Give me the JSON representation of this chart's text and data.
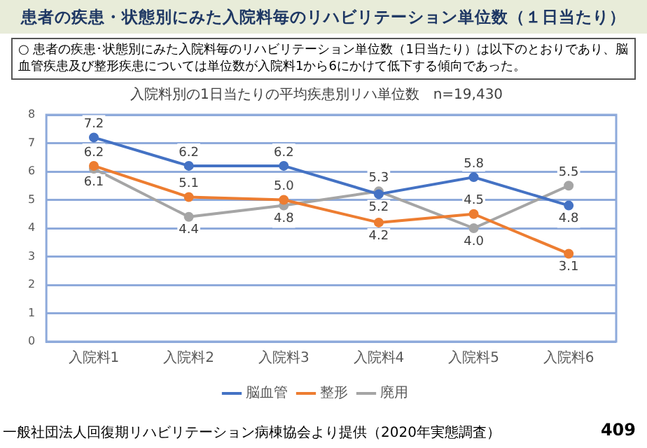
{
  "chart_data": {
    "type": "line",
    "title": "入院料別の1日当たりの平均疾患別リハ単位数　n=19,430",
    "categories": [
      "入院料1",
      "入院料2",
      "入院料3",
      "入院料4",
      "入院料5",
      "入院料6"
    ],
    "series": [
      {
        "name": "脳血管",
        "color": "#4472c4",
        "values": [
          7.2,
          6.2,
          6.2,
          5.2,
          5.8,
          4.8
        ],
        "value_labels": [
          "7.2",
          "6.2",
          "6.2",
          "5.2",
          "5.8",
          "4.8"
        ]
      },
      {
        "name": "整形",
        "color": "#ed7d31",
        "values": [
          6.2,
          5.1,
          5.0,
          4.2,
          4.5,
          3.1
        ],
        "value_labels": [
          "6.2",
          "5.1",
          "5.0",
          "4.2",
          "4.5",
          "3.1"
        ]
      },
      {
        "name": "廃用",
        "color": "#a5a5a5",
        "values": [
          6.1,
          4.4,
          4.8,
          5.3,
          4.0,
          5.5
        ],
        "value_labels": [
          "6.1",
          "4.4",
          "4.8",
          "5.3",
          "4.0",
          "5.5"
        ]
      }
    ],
    "ylim": [
      0,
      8
    ],
    "yticks": [
      0,
      1,
      2,
      3,
      4,
      5,
      6,
      7,
      8
    ],
    "grid": "y",
    "legend": "bottom",
    "marker": "circle",
    "annotations": [
      "患者の疾患・状態別にみた入院料毎のリハビリテーション単位数（１日当たり）",
      "○ 患者の疾患･状態別にみた入院料毎のリハビリテーション単位数（1日当たり）は以下のとおりであり、脳血管疾患及び整形疾患については単位数が入院料1から6にかけて低下する傾向であった。",
      "一般社団法人回復期リハビリテーション病棟協会より提供（2020年実態調査）",
      "409"
    ]
  }
}
